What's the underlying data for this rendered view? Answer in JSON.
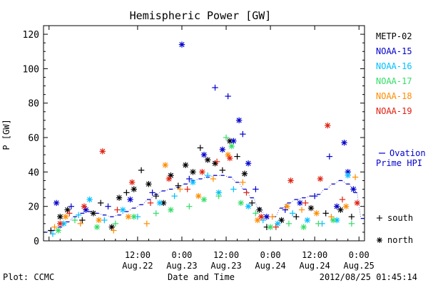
{
  "chart_data": {
    "type": "scatter",
    "title": "Hemispheric Power [GW]",
    "ylabel": "P [GW]",
    "xlabel": "Date and Time",
    "ylim": [
      0,
      125
    ],
    "yticks": [
      0,
      20,
      40,
      60,
      80,
      100,
      120
    ],
    "xlim_hours": [
      -13.5,
      73.5
    ],
    "xticks": [
      {
        "hour": -12,
        "line1": "",
        "line2": ""
      },
      {
        "hour": 12,
        "line1": "12:00",
        "line2": "Aug.22"
      },
      {
        "hour": 24,
        "line1": "0:00",
        "line2": "Aug.23"
      },
      {
        "hour": 36,
        "line1": "12:00",
        "line2": "Aug.23"
      },
      {
        "hour": 48,
        "line1": "0:00",
        "line2": "Aug.24"
      },
      {
        "hour": 60,
        "line1": "12:00",
        "line2": "Aug.24"
      },
      {
        "hour": 72,
        "line1": "0:00",
        "line2": "Aug.25"
      }
    ],
    "x_origin": "2012-08-21 12:00",
    "legend_position": "right",
    "series": [
      {
        "name": "METP-02",
        "color": "#000000",
        "points": [
          {
            "x": -11.5,
            "y": 6,
            "m": "+"
          },
          {
            "x": -9,
            "y": 14,
            "m": "*"
          },
          {
            "x": -7,
            "y": 18,
            "m": "*"
          },
          {
            "x": -3,
            "y": 12,
            "m": "+"
          },
          {
            "x": 0,
            "y": 16,
            "m": "*"
          },
          {
            "x": 2,
            "y": 22,
            "m": "+"
          },
          {
            "x": 5,
            "y": 8,
            "m": "*"
          },
          {
            "x": 7,
            "y": 25,
            "m": "*"
          },
          {
            "x": 9,
            "y": 28,
            "m": "+"
          },
          {
            "x": 11,
            "y": 30,
            "m": "*"
          },
          {
            "x": 13,
            "y": 41,
            "m": "+"
          },
          {
            "x": 15,
            "y": 33,
            "m": "*"
          },
          {
            "x": 17,
            "y": 26,
            "m": "+"
          },
          {
            "x": 19,
            "y": 22,
            "m": "*"
          },
          {
            "x": 21,
            "y": 38,
            "m": "*"
          },
          {
            "x": 23,
            "y": 32,
            "m": "+"
          },
          {
            "x": 25,
            "y": 44,
            "m": "*"
          },
          {
            "x": 27,
            "y": 40,
            "m": "*"
          },
          {
            "x": 29,
            "y": 54,
            "m": "+"
          },
          {
            "x": 31,
            "y": 47,
            "m": "*"
          },
          {
            "x": 33,
            "y": 45,
            "m": "*"
          },
          {
            "x": 35,
            "y": 41,
            "m": "+"
          },
          {
            "x": 37,
            "y": 58,
            "m": "*"
          },
          {
            "x": 39,
            "y": 49,
            "m": "+"
          },
          {
            "x": 41,
            "y": 39,
            "m": "*"
          },
          {
            "x": 43,
            "y": 22,
            "m": "+"
          },
          {
            "x": 45,
            "y": 18,
            "m": "*"
          },
          {
            "x": 47,
            "y": 8,
            "m": "+"
          },
          {
            "x": 51,
            "y": 12,
            "m": "*"
          },
          {
            "x": 55,
            "y": 14,
            "m": "+"
          },
          {
            "x": 59,
            "y": 19,
            "m": "*"
          },
          {
            "x": 63,
            "y": 16,
            "m": "+"
          },
          {
            "x": 67,
            "y": 18,
            "m": "*"
          },
          {
            "x": 70,
            "y": 14,
            "m": "+"
          }
        ]
      },
      {
        "name": "NOAA-15",
        "color": "#0000cc",
        "points": [
          {
            "x": -10,
            "y": 22,
            "m": "*"
          },
          {
            "x": -6,
            "y": 20,
            "m": "+"
          },
          {
            "x": -2,
            "y": 18,
            "m": "*"
          },
          {
            "x": 4,
            "y": 20,
            "m": "+"
          },
          {
            "x": 10,
            "y": 24,
            "m": "*"
          },
          {
            "x": 16,
            "y": 28,
            "m": "+"
          },
          {
            "x": 24,
            "y": 114,
            "m": "*"
          },
          {
            "x": 26,
            "y": 36,
            "m": "+"
          },
          {
            "x": 30,
            "y": 50,
            "m": "*"
          },
          {
            "x": 33,
            "y": 89,
            "m": "+"
          },
          {
            "x": 35,
            "y": 53,
            "m": "*"
          },
          {
            "x": 36.5,
            "y": 84,
            "m": "+"
          },
          {
            "x": 38,
            "y": 58,
            "m": "*"
          },
          {
            "x": 39.5,
            "y": 70,
            "m": "*"
          },
          {
            "x": 40.5,
            "y": 62,
            "m": "+"
          },
          {
            "x": 42,
            "y": 45,
            "m": "*"
          },
          {
            "x": 44,
            "y": 30,
            "m": "+"
          },
          {
            "x": 47,
            "y": 14,
            "m": "*"
          },
          {
            "x": 52,
            "y": 18,
            "m": "+"
          },
          {
            "x": 56,
            "y": 22,
            "m": "*"
          },
          {
            "x": 60,
            "y": 26,
            "m": "+"
          },
          {
            "x": 64,
            "y": 49,
            "m": "+"
          },
          {
            "x": 66,
            "y": 20,
            "m": "*"
          },
          {
            "x": 68,
            "y": 57,
            "m": "*"
          },
          {
            "x": 69,
            "y": 40,
            "m": "*"
          },
          {
            "x": 70.5,
            "y": 30,
            "m": "*"
          }
        ]
      },
      {
        "name": "NOAA-16",
        "color": "#00bfff",
        "points": [
          {
            "x": -11,
            "y": 4,
            "m": "+"
          },
          {
            "x": -8,
            "y": 10,
            "m": "*"
          },
          {
            "x": -4,
            "y": 15,
            "m": "+"
          },
          {
            "x": -1,
            "y": 24,
            "m": "*"
          },
          {
            "x": 3,
            "y": 12,
            "m": "+"
          },
          {
            "x": 8,
            "y": 18,
            "m": "*"
          },
          {
            "x": 12,
            "y": 14,
            "m": "+"
          },
          {
            "x": 18,
            "y": 22,
            "m": "*"
          },
          {
            "x": 22,
            "y": 26,
            "m": "+"
          },
          {
            "x": 27,
            "y": 34,
            "m": "*"
          },
          {
            "x": 31,
            "y": 38,
            "m": "+"
          },
          {
            "x": 34,
            "y": 28,
            "m": "*"
          },
          {
            "x": 38,
            "y": 30,
            "m": "+"
          },
          {
            "x": 42,
            "y": 20,
            "m": "*"
          },
          {
            "x": 46,
            "y": 12,
            "m": "+"
          },
          {
            "x": 50,
            "y": 10,
            "m": "*"
          },
          {
            "x": 54,
            "y": 16,
            "m": "+"
          },
          {
            "x": 58,
            "y": 12,
            "m": "*"
          },
          {
            "x": 62,
            "y": 10,
            "m": "+"
          },
          {
            "x": 66,
            "y": 12,
            "m": "*"
          },
          {
            "x": 69,
            "y": 38,
            "m": "*"
          }
        ]
      },
      {
        "name": "NOAA-17",
        "color": "#33dd66",
        "points": [
          {
            "x": -9.5,
            "y": 6,
            "m": "*"
          },
          {
            "x": -5,
            "y": 12,
            "m": "+"
          },
          {
            "x": 1,
            "y": 8,
            "m": "*"
          },
          {
            "x": 6,
            "y": 10,
            "m": "+"
          },
          {
            "x": 11,
            "y": 14,
            "m": "*"
          },
          {
            "x": 17,
            "y": 16,
            "m": "+"
          },
          {
            "x": 21,
            "y": 18,
            "m": "*"
          },
          {
            "x": 26,
            "y": 20,
            "m": "+"
          },
          {
            "x": 30,
            "y": 24,
            "m": "*"
          },
          {
            "x": 34,
            "y": 26,
            "m": "+"
          },
          {
            "x": 36,
            "y": 60,
            "m": "+"
          },
          {
            "x": 37.5,
            "y": 55,
            "m": "*"
          },
          {
            "x": 40,
            "y": 22,
            "m": "*"
          },
          {
            "x": 44,
            "y": 16,
            "m": "+"
          },
          {
            "x": 48,
            "y": 8,
            "m": "*"
          },
          {
            "x": 53,
            "y": 10,
            "m": "+"
          },
          {
            "x": 57,
            "y": 8,
            "m": "*"
          },
          {
            "x": 61,
            "y": 10,
            "m": "+"
          },
          {
            "x": 65,
            "y": 12,
            "m": "*"
          },
          {
            "x": 70,
            "y": 10,
            "m": "+"
          }
        ]
      },
      {
        "name": "NOAA-18",
        "color": "#ff8c00",
        "points": [
          {
            "x": -10.5,
            "y": 8,
            "m": "+"
          },
          {
            "x": -7.5,
            "y": 14,
            "m": "*"
          },
          {
            "x": -3.5,
            "y": 10,
            "m": "+"
          },
          {
            "x": 1.5,
            "y": 12,
            "m": "*"
          },
          {
            "x": 5.5,
            "y": 6,
            "m": "+"
          },
          {
            "x": 9.5,
            "y": 14,
            "m": "*"
          },
          {
            "x": 14.5,
            "y": 10,
            "m": "+"
          },
          {
            "x": 19.5,
            "y": 44,
            "m": "*"
          },
          {
            "x": 23.5,
            "y": 30,
            "m": "+"
          },
          {
            "x": 28.5,
            "y": 26,
            "m": "*"
          },
          {
            "x": 32.5,
            "y": 36,
            "m": "+"
          },
          {
            "x": 36.5,
            "y": 50,
            "m": "*"
          },
          {
            "x": 40.5,
            "y": 34,
            "m": "+"
          },
          {
            "x": 44.5,
            "y": 12,
            "m": "*"
          },
          {
            "x": 48.5,
            "y": 14,
            "m": "+"
          },
          {
            "x": 52.5,
            "y": 20,
            "m": "*"
          },
          {
            "x": 56.5,
            "y": 18,
            "m": "+"
          },
          {
            "x": 60.5,
            "y": 16,
            "m": "*"
          },
          {
            "x": 64.5,
            "y": 14,
            "m": "+"
          },
          {
            "x": 68.5,
            "y": 20,
            "m": "*"
          },
          {
            "x": 71,
            "y": 37,
            "m": "+"
          }
        ]
      },
      {
        "name": "NOAA-19",
        "color": "#e02010",
        "points": [
          {
            "x": -9,
            "y": 10,
            "m": "*"
          },
          {
            "x": -6.5,
            "y": 16,
            "m": "+"
          },
          {
            "x": -2.5,
            "y": 20,
            "m": "*"
          },
          {
            "x": 2.5,
            "y": 52,
            "m": "*"
          },
          {
            "x": 6.5,
            "y": 18,
            "m": "+"
          },
          {
            "x": 10.5,
            "y": 34,
            "m": "*"
          },
          {
            "x": 15.5,
            "y": 22,
            "m": "+"
          },
          {
            "x": 20.5,
            "y": 36,
            "m": "*"
          },
          {
            "x": 25.5,
            "y": 30,
            "m": "+"
          },
          {
            "x": 29.5,
            "y": 40,
            "m": "*"
          },
          {
            "x": 33.5,
            "y": 46,
            "m": "+"
          },
          {
            "x": 37,
            "y": 48,
            "m": "*"
          },
          {
            "x": 41.5,
            "y": 28,
            "m": "+"
          },
          {
            "x": 45.5,
            "y": 14,
            "m": "*"
          },
          {
            "x": 49.5,
            "y": 8,
            "m": "+"
          },
          {
            "x": 53.5,
            "y": 35,
            "m": "*"
          },
          {
            "x": 57.5,
            "y": 22,
            "m": "+"
          },
          {
            "x": 61.5,
            "y": 36,
            "m": "*"
          },
          {
            "x": 63.5,
            "y": 67,
            "m": "*"
          },
          {
            "x": 67.5,
            "y": 24,
            "m": "+"
          },
          {
            "x": 71.5,
            "y": 22,
            "m": "*"
          }
        ]
      }
    ],
    "ovation": {
      "name": "Ovation Prime HPI",
      "label_line1": "Ovation",
      "label_line2": "Prime HPI",
      "color": "#0000cc",
      "points": [
        {
          "x": -13,
          "y": 5
        },
        {
          "x": -11,
          "y": 6
        },
        {
          "x": -9,
          "y": 8
        },
        {
          "x": -7,
          "y": 11
        },
        {
          "x": -5,
          "y": 14
        },
        {
          "x": -3,
          "y": 16
        },
        {
          "x": -1,
          "y": 17
        },
        {
          "x": 1,
          "y": 16
        },
        {
          "x": 3,
          "y": 15
        },
        {
          "x": 5,
          "y": 14
        },
        {
          "x": 7,
          "y": 15
        },
        {
          "x": 9,
          "y": 17
        },
        {
          "x": 11,
          "y": 19
        },
        {
          "x": 13,
          "y": 21
        },
        {
          "x": 15,
          "y": 24
        },
        {
          "x": 17,
          "y": 27
        },
        {
          "x": 19,
          "y": 29
        },
        {
          "x": 21,
          "y": 30
        },
        {
          "x": 23,
          "y": 31
        },
        {
          "x": 25,
          "y": 33
        },
        {
          "x": 27,
          "y": 35
        },
        {
          "x": 29,
          "y": 36
        },
        {
          "x": 31,
          "y": 37
        },
        {
          "x": 33,
          "y": 38
        },
        {
          "x": 35,
          "y": 38
        },
        {
          "x": 37,
          "y": 37
        },
        {
          "x": 39,
          "y": 34
        },
        {
          "x": 41,
          "y": 30
        },
        {
          "x": 43,
          "y": 25
        },
        {
          "x": 45,
          "y": 19
        },
        {
          "x": 47,
          "y": 14
        },
        {
          "x": 49,
          "y": 14
        },
        {
          "x": 51,
          "y": 19
        },
        {
          "x": 53,
          "y": 22
        },
        {
          "x": 55,
          "y": 24
        },
        {
          "x": 57,
          "y": 25
        },
        {
          "x": 59,
          "y": 26
        },
        {
          "x": 61,
          "y": 27
        },
        {
          "x": 63,
          "y": 30
        },
        {
          "x": 65,
          "y": 33
        },
        {
          "x": 67,
          "y": 35
        },
        {
          "x": 69,
          "y": 33
        },
        {
          "x": 71,
          "y": 28
        },
        {
          "x": 73,
          "y": 13
        }
      ]
    },
    "marker_legend": [
      {
        "symbol": "+",
        "label": "south"
      },
      {
        "symbol": "*",
        "label": "north"
      }
    ]
  },
  "footer": {
    "plot_credit": "Plot: CCMC",
    "timestamp": "2012/08/25 01:45:14"
  }
}
